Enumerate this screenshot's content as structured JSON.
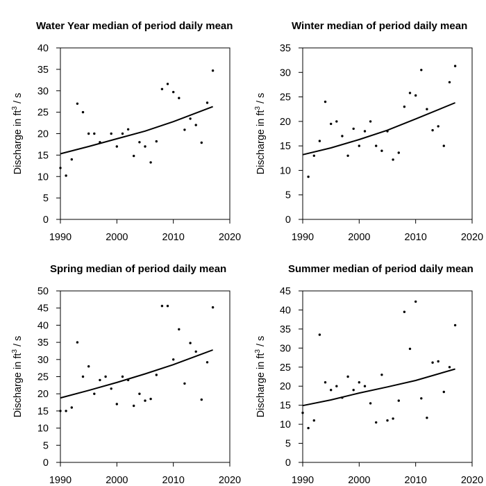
{
  "chart_data": [
    {
      "type": "scatter",
      "title": "Water Year median of period daily mean",
      "ylabel_main": "Discharge in ft",
      "ylabel_sup": "3",
      "ylabel_tail": " / s",
      "xlabel": "",
      "xlim": [
        1990,
        2020
      ],
      "ylim": [
        0,
        40
      ],
      "xticks": [
        1990,
        2000,
        2010,
        2020
      ],
      "yticks": [
        0,
        5,
        10,
        15,
        20,
        25,
        30,
        35,
        40
      ],
      "points": [
        [
          1990,
          12.0
        ],
        [
          1991,
          10.2
        ],
        [
          1992,
          14.0
        ],
        [
          1993,
          27.0
        ],
        [
          1994,
          25.0
        ],
        [
          1995,
          20.0
        ],
        [
          1996,
          20.0
        ],
        [
          1997,
          18.0
        ],
        [
          1999,
          20.0
        ],
        [
          2000,
          17.0
        ],
        [
          2001,
          20.0
        ],
        [
          2002,
          21.0
        ],
        [
          2003,
          14.8
        ],
        [
          2004,
          18.0
        ],
        [
          2005,
          17.0
        ],
        [
          2006,
          13.3
        ],
        [
          2007,
          18.2
        ],
        [
          2008,
          30.4
        ],
        [
          2009,
          31.6
        ],
        [
          2010,
          29.7
        ],
        [
          2011,
          28.3
        ],
        [
          2012,
          20.9
        ],
        [
          2013,
          23.5
        ],
        [
          2014,
          22.0
        ],
        [
          2015,
          17.9
        ],
        [
          2016,
          27.2
        ],
        [
          2017,
          34.7
        ]
      ],
      "trend": [
        [
          1990,
          15.3
        ],
        [
          1995,
          17.0
        ],
        [
          2000,
          18.8
        ],
        [
          2005,
          20.6
        ],
        [
          2010,
          22.8
        ],
        [
          2017,
          26.3
        ]
      ]
    },
    {
      "type": "scatter",
      "title": "Winter median of period daily mean",
      "ylabel_main": "Discharge in ft",
      "ylabel_sup": "3",
      "ylabel_tail": " / s",
      "xlabel": "",
      "xlim": [
        1990,
        2020
      ],
      "ylim": [
        0,
        35
      ],
      "xticks": [
        1990,
        2000,
        2010,
        2020
      ],
      "yticks": [
        0,
        5,
        10,
        15,
        20,
        25,
        30,
        35
      ],
      "points": [
        [
          1991,
          8.7
        ],
        [
          1992,
          13.0
        ],
        [
          1993,
          16.0
        ],
        [
          1994,
          24.0
        ],
        [
          1995,
          19.5
        ],
        [
          1996,
          20.0
        ],
        [
          1997,
          17.0
        ],
        [
          1998,
          13.0
        ],
        [
          1999,
          18.5
        ],
        [
          2000,
          15.0
        ],
        [
          2001,
          18.0
        ],
        [
          2002,
          20.0
        ],
        [
          2003,
          15.0
        ],
        [
          2004,
          14.0
        ],
        [
          2005,
          18.0
        ],
        [
          2006,
          12.2
        ],
        [
          2007,
          13.6
        ],
        [
          2008,
          23.0
        ],
        [
          2009,
          25.8
        ],
        [
          2010,
          25.3
        ],
        [
          2011,
          30.5
        ],
        [
          2012,
          22.5
        ],
        [
          2013,
          18.2
        ],
        [
          2014,
          19.0
        ],
        [
          2015,
          15.0
        ],
        [
          2016,
          28.0
        ],
        [
          2017,
          31.3
        ]
      ],
      "trend": [
        [
          1990,
          13.2
        ],
        [
          1995,
          14.6
        ],
        [
          2000,
          16.3
        ],
        [
          2005,
          18.2
        ],
        [
          2010,
          20.5
        ],
        [
          2017,
          23.8
        ]
      ]
    },
    {
      "type": "scatter",
      "title": "Spring median of period daily mean",
      "ylabel_main": "Discharge in ft",
      "ylabel_sup": "3",
      "ylabel_tail": " / s",
      "xlabel": "",
      "xlim": [
        1990,
        2020
      ],
      "ylim": [
        0,
        50
      ],
      "xticks": [
        1990,
        2000,
        2010,
        2020
      ],
      "yticks": [
        0,
        5,
        10,
        15,
        20,
        25,
        30,
        35,
        40,
        45,
        50
      ],
      "points": [
        [
          1990,
          15.0
        ],
        [
          1991,
          15.0
        ],
        [
          1992,
          16.0
        ],
        [
          1993,
          35.0
        ],
        [
          1994,
          25.0
        ],
        [
          1995,
          28.0
        ],
        [
          1996,
          20.0
        ],
        [
          1997,
          24.0
        ],
        [
          1998,
          25.0
        ],
        [
          1999,
          21.5
        ],
        [
          2000,
          17.0
        ],
        [
          2001,
          25.0
        ],
        [
          2002,
          24.0
        ],
        [
          2003,
          16.5
        ],
        [
          2004,
          20.0
        ],
        [
          2005,
          18.0
        ],
        [
          2006,
          18.5
        ],
        [
          2007,
          25.5
        ],
        [
          2008,
          45.6
        ],
        [
          2009,
          45.6
        ],
        [
          2010,
          30.0
        ],
        [
          2011,
          38.8
        ],
        [
          2012,
          23.0
        ],
        [
          2013,
          34.8
        ],
        [
          2014,
          32.3
        ],
        [
          2015,
          18.3
        ],
        [
          2016,
          29.2
        ],
        [
          2017,
          45.2
        ]
      ],
      "trend": [
        [
          1990,
          18.8
        ],
        [
          1995,
          21.0
        ],
        [
          2000,
          23.3
        ],
        [
          2005,
          25.8
        ],
        [
          2010,
          28.5
        ],
        [
          2017,
          32.8
        ]
      ]
    },
    {
      "type": "scatter",
      "title": "Summer median of period daily mean",
      "ylabel_main": "Discharge in ft",
      "ylabel_sup": "3",
      "ylabel_tail": " / s",
      "xlabel": "",
      "xlim": [
        1990,
        2020
      ],
      "ylim": [
        0,
        45
      ],
      "xticks": [
        1990,
        2000,
        2010,
        2020
      ],
      "yticks": [
        0,
        5,
        10,
        15,
        20,
        25,
        30,
        35,
        40,
        45
      ],
      "points": [
        [
          1990,
          13.0
        ],
        [
          1991,
          9.0
        ],
        [
          1992,
          11.0
        ],
        [
          1993,
          33.5
        ],
        [
          1994,
          21.0
        ],
        [
          1995,
          19.0
        ],
        [
          1996,
          20.0
        ],
        [
          1997,
          17.0
        ],
        [
          1998,
          22.5
        ],
        [
          1999,
          19.0
        ],
        [
          2000,
          21.0
        ],
        [
          2001,
          20.0
        ],
        [
          2002,
          15.5
        ],
        [
          2003,
          10.5
        ],
        [
          2004,
          23.0
        ],
        [
          2005,
          11.0
        ],
        [
          2006,
          11.5
        ],
        [
          2007,
          16.2
        ],
        [
          2008,
          39.5
        ],
        [
          2009,
          29.8
        ],
        [
          2010,
          42.2
        ],
        [
          2011,
          16.8
        ],
        [
          2012,
          11.7
        ],
        [
          2013,
          26.2
        ],
        [
          2014,
          26.5
        ],
        [
          2015,
          18.5
        ],
        [
          2016,
          25.0
        ],
        [
          2017,
          36.0
        ]
      ],
      "trend": [
        [
          1990,
          14.9
        ],
        [
          1995,
          16.4
        ],
        [
          2000,
          18.2
        ],
        [
          2005,
          19.8
        ],
        [
          2010,
          21.5
        ],
        [
          2017,
          24.5
        ]
      ]
    }
  ]
}
